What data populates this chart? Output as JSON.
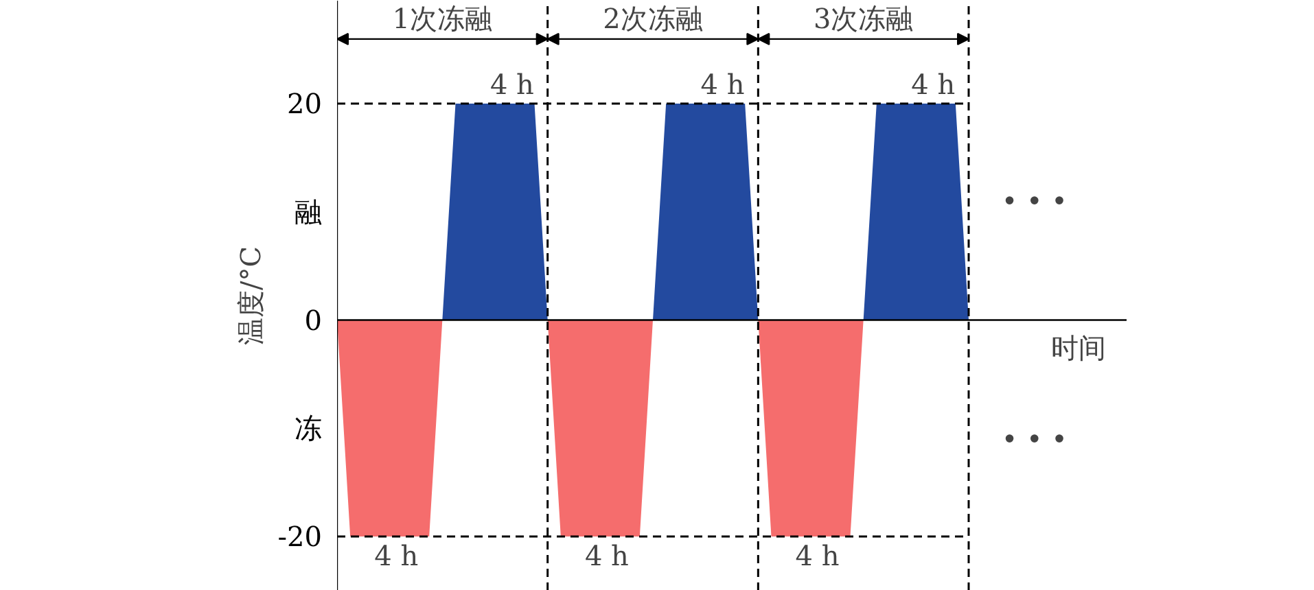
{
  "chart_data": {
    "type": "area",
    "xlabel": "时间",
    "ylabel": "温度/°C",
    "categories": [
      null,
      null,
      null,
      null,
      null,
      null,
      null,
      null,
      null,
      null,
      null,
      null,
      null,
      null,
      null,
      null,
      null,
      null,
      null,
      null,
      null,
      null,
      null,
      null,
      null,
      null,
      null,
      null,
      null,
      null,
      null,
      null,
      null,
      null,
      null,
      null,
      null,
      null,
      null,
      null,
      null,
      null,
      null,
      null,
      null,
      null,
      null,
      null,
      null
    ],
    "series": [
      {
        "color": "#f56d6d",
        "values": [
          0,
          -20,
          -20,
          -20,
          -20,
          -20,
          -20,
          -20,
          0,
          0,
          0,
          0,
          0,
          0,
          0,
          0,
          0,
          -20,
          -20,
          -20,
          -20,
          -20,
          -20,
          -20,
          0,
          0,
          0,
          0,
          0,
          0,
          0,
          0,
          0,
          -20,
          -20,
          -20,
          -20,
          -20,
          -20,
          -20,
          0,
          0,
          0,
          0,
          0,
          0,
          0,
          0,
          0
        ]
      },
      {
        "color": "#234a9f",
        "values": [
          0,
          0,
          0,
          0,
          0,
          0,
          0,
          0,
          0,
          20,
          20,
          20,
          20,
          20,
          20,
          20,
          0,
          0,
          0,
          0,
          0,
          0,
          0,
          0,
          0,
          20,
          20,
          20,
          20,
          20,
          20,
          20,
          0,
          0,
          0,
          0,
          0,
          0,
          0,
          0,
          0,
          20,
          20,
          20,
          20,
          20,
          20,
          20,
          0
        ]
      }
    ],
    "ylim": [
      -25,
      29.5
    ],
    "yticks": [
      20,
      {
        "value": 10,
        "label": "融"
      },
      0,
      {
        "value": -10,
        "label": "冻"
      },
      -20
    ],
    "grid": false,
    "tick_labels": "y",
    "ref_lines": [
      {
        "axis": "y",
        "value": 20,
        "line_style": "dashed"
      },
      {
        "axis": "y",
        "value": -20,
        "line_style": "dashed"
      }
    ],
    "annotations": [
      "1次冻融",
      "2次冻融",
      "3次冻融",
      "4 h",
      "4 h",
      "4 h",
      "4 h",
      "4 h",
      "4 h",
      "• • •",
      "• • •"
    ]
  }
}
